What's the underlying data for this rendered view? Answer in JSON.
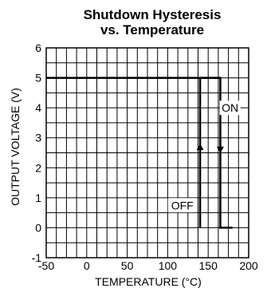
{
  "chart_data": {
    "type": "line",
    "title": "Shutdown Hysteresis",
    "subtitle": "vs. Temperature",
    "xlabel": "TEMPERATURE (°C)",
    "ylabel": "OUTPUT VOLTAGE (V)",
    "xlim": [
      -50,
      200
    ],
    "ylim": [
      -1,
      6
    ],
    "x_ticks": [
      -50,
      0,
      50,
      100,
      150,
      200
    ],
    "x_tick_labels": [
      "-50",
      "0",
      "50",
      "100",
      "150",
      "200"
    ],
    "y_ticks": [
      -1,
      0,
      1,
      2,
      3,
      4,
      5,
      6
    ],
    "y_tick_labels": [
      "-1",
      "0",
      "1",
      "2",
      "3",
      "4",
      "5",
      "6"
    ],
    "grid": true,
    "series": [
      {
        "x": [
          -50,
          165,
          165,
          180
        ],
        "y": [
          5,
          5,
          0,
          0
        ]
      },
      {
        "x": [
          140,
          140,
          165
        ],
        "y": [
          0,
          5,
          5
        ]
      }
    ],
    "annotations": [
      {
        "text": "ON",
        "x": 177,
        "y": 4
      },
      {
        "text": "OFF",
        "x": 118,
        "y": 0.75
      }
    ],
    "colors": {
      "line": "#000000",
      "grid": "#000000",
      "background": "#ffffff"
    }
  }
}
